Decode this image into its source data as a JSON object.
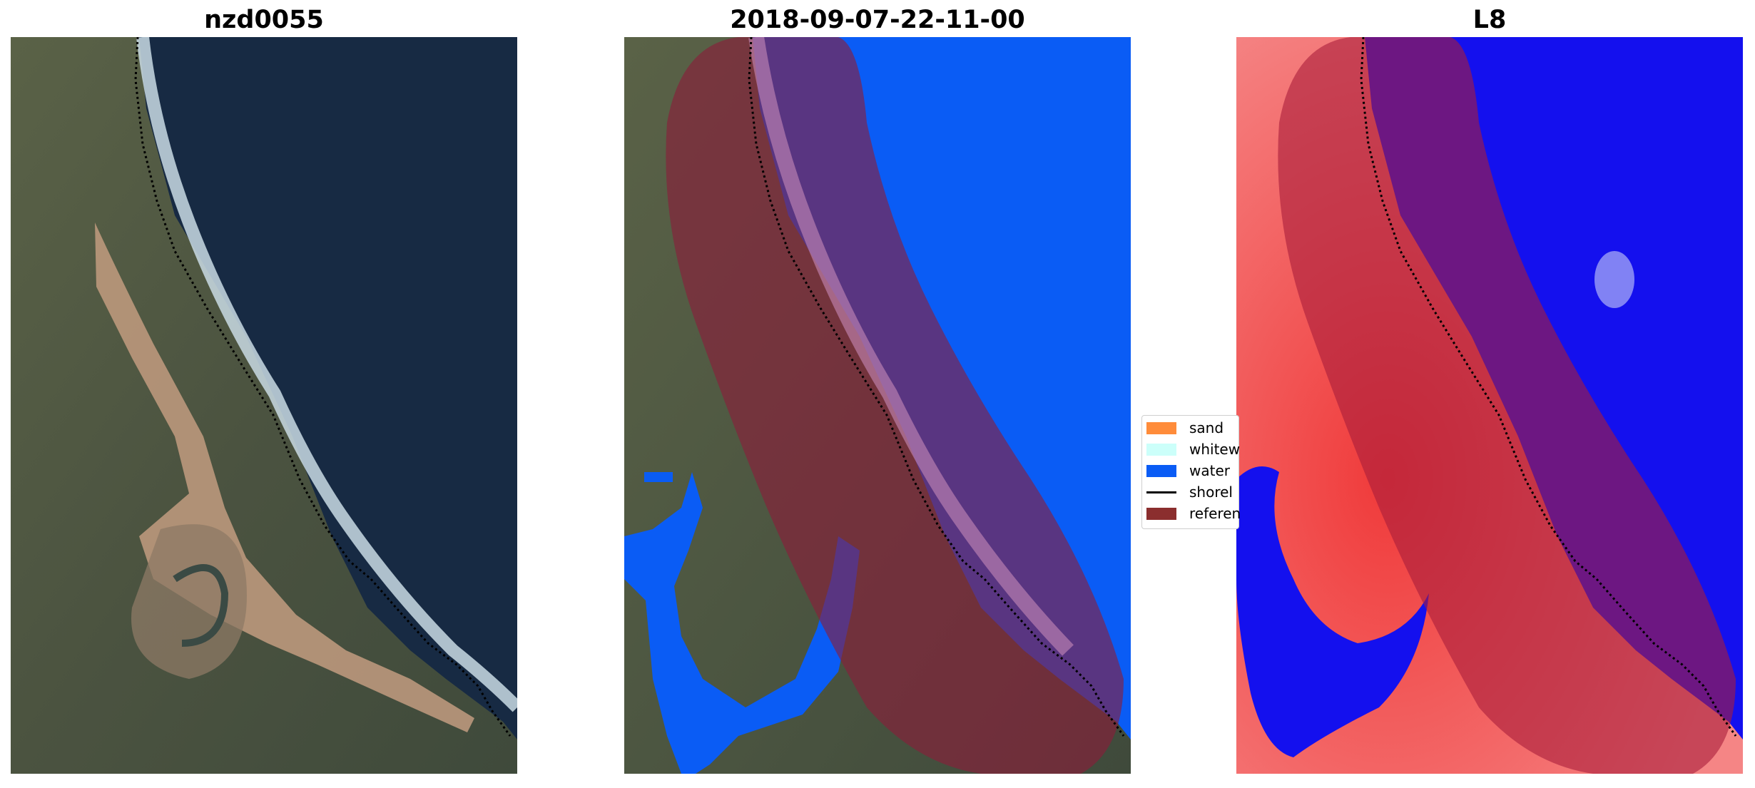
{
  "panels": [
    {
      "title": "nzd0055"
    },
    {
      "title": "2018-09-07-22-11-00"
    },
    {
      "title": "L8"
    }
  ],
  "legend": {
    "items": [
      {
        "label": "sand",
        "color": "#ff8c3a",
        "kind": "patch"
      },
      {
        "label": "whitew",
        "color": "#ccfffa",
        "kind": "patch"
      },
      {
        "label": "water",
        "color": "#0a5cf5",
        "kind": "patch"
      },
      {
        "label": "shorel",
        "color": "#000000",
        "kind": "line"
      },
      {
        "label": "referen",
        "color": "#8b2e2e",
        "kind": "patch"
      }
    ]
  },
  "colors": {
    "ocean": "#172a43",
    "land": "#4f5540",
    "sand": "#bb987c",
    "surf": "#c9dbe4",
    "classified_water": "#0a5cf5",
    "reference_buffer": "#8b1d3a",
    "index_positive": "#f03a3a",
    "index_negative": "#1410ee"
  }
}
